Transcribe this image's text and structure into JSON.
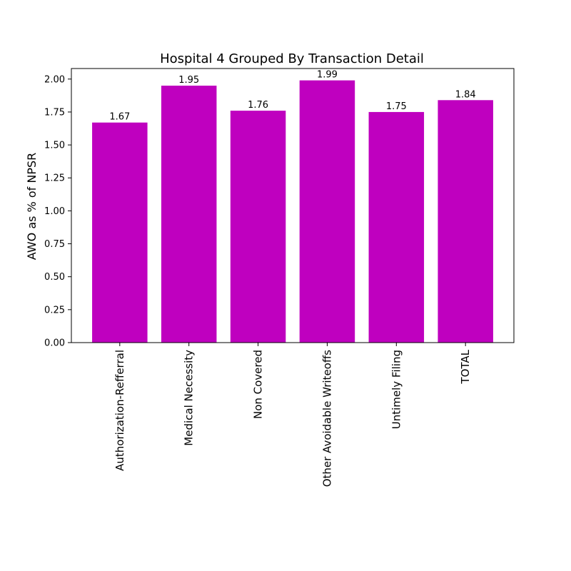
{
  "chart_data": {
    "type": "bar",
    "title": "Hospital 4 Grouped By Transaction Detail",
    "xlabel": "",
    "ylabel": "AWO as % of NPSR",
    "categories": [
      "Authorization-Refferral",
      "Medical Necessity",
      "Non Covered",
      "Other Avoidable Writeoffs",
      "Untimely Filing",
      "TOTAL"
    ],
    "values": [
      1.67,
      1.95,
      1.76,
      1.99,
      1.75,
      1.84
    ],
    "data_labels": [
      "1.67",
      "1.95",
      "1.76",
      "1.99",
      "1.75",
      "1.84"
    ],
    "ylim": [
      0,
      2.08
    ],
    "yticks": [
      0.0,
      0.25,
      0.5,
      0.75,
      1.0,
      1.25,
      1.5,
      1.75,
      2.0
    ],
    "ytick_labels": [
      "0.00",
      "0.25",
      "0.50",
      "0.75",
      "1.00",
      "1.25",
      "1.50",
      "1.75",
      "2.00"
    ],
    "bar_color": "#bf00bf",
    "grid": false,
    "legend": "none"
  }
}
